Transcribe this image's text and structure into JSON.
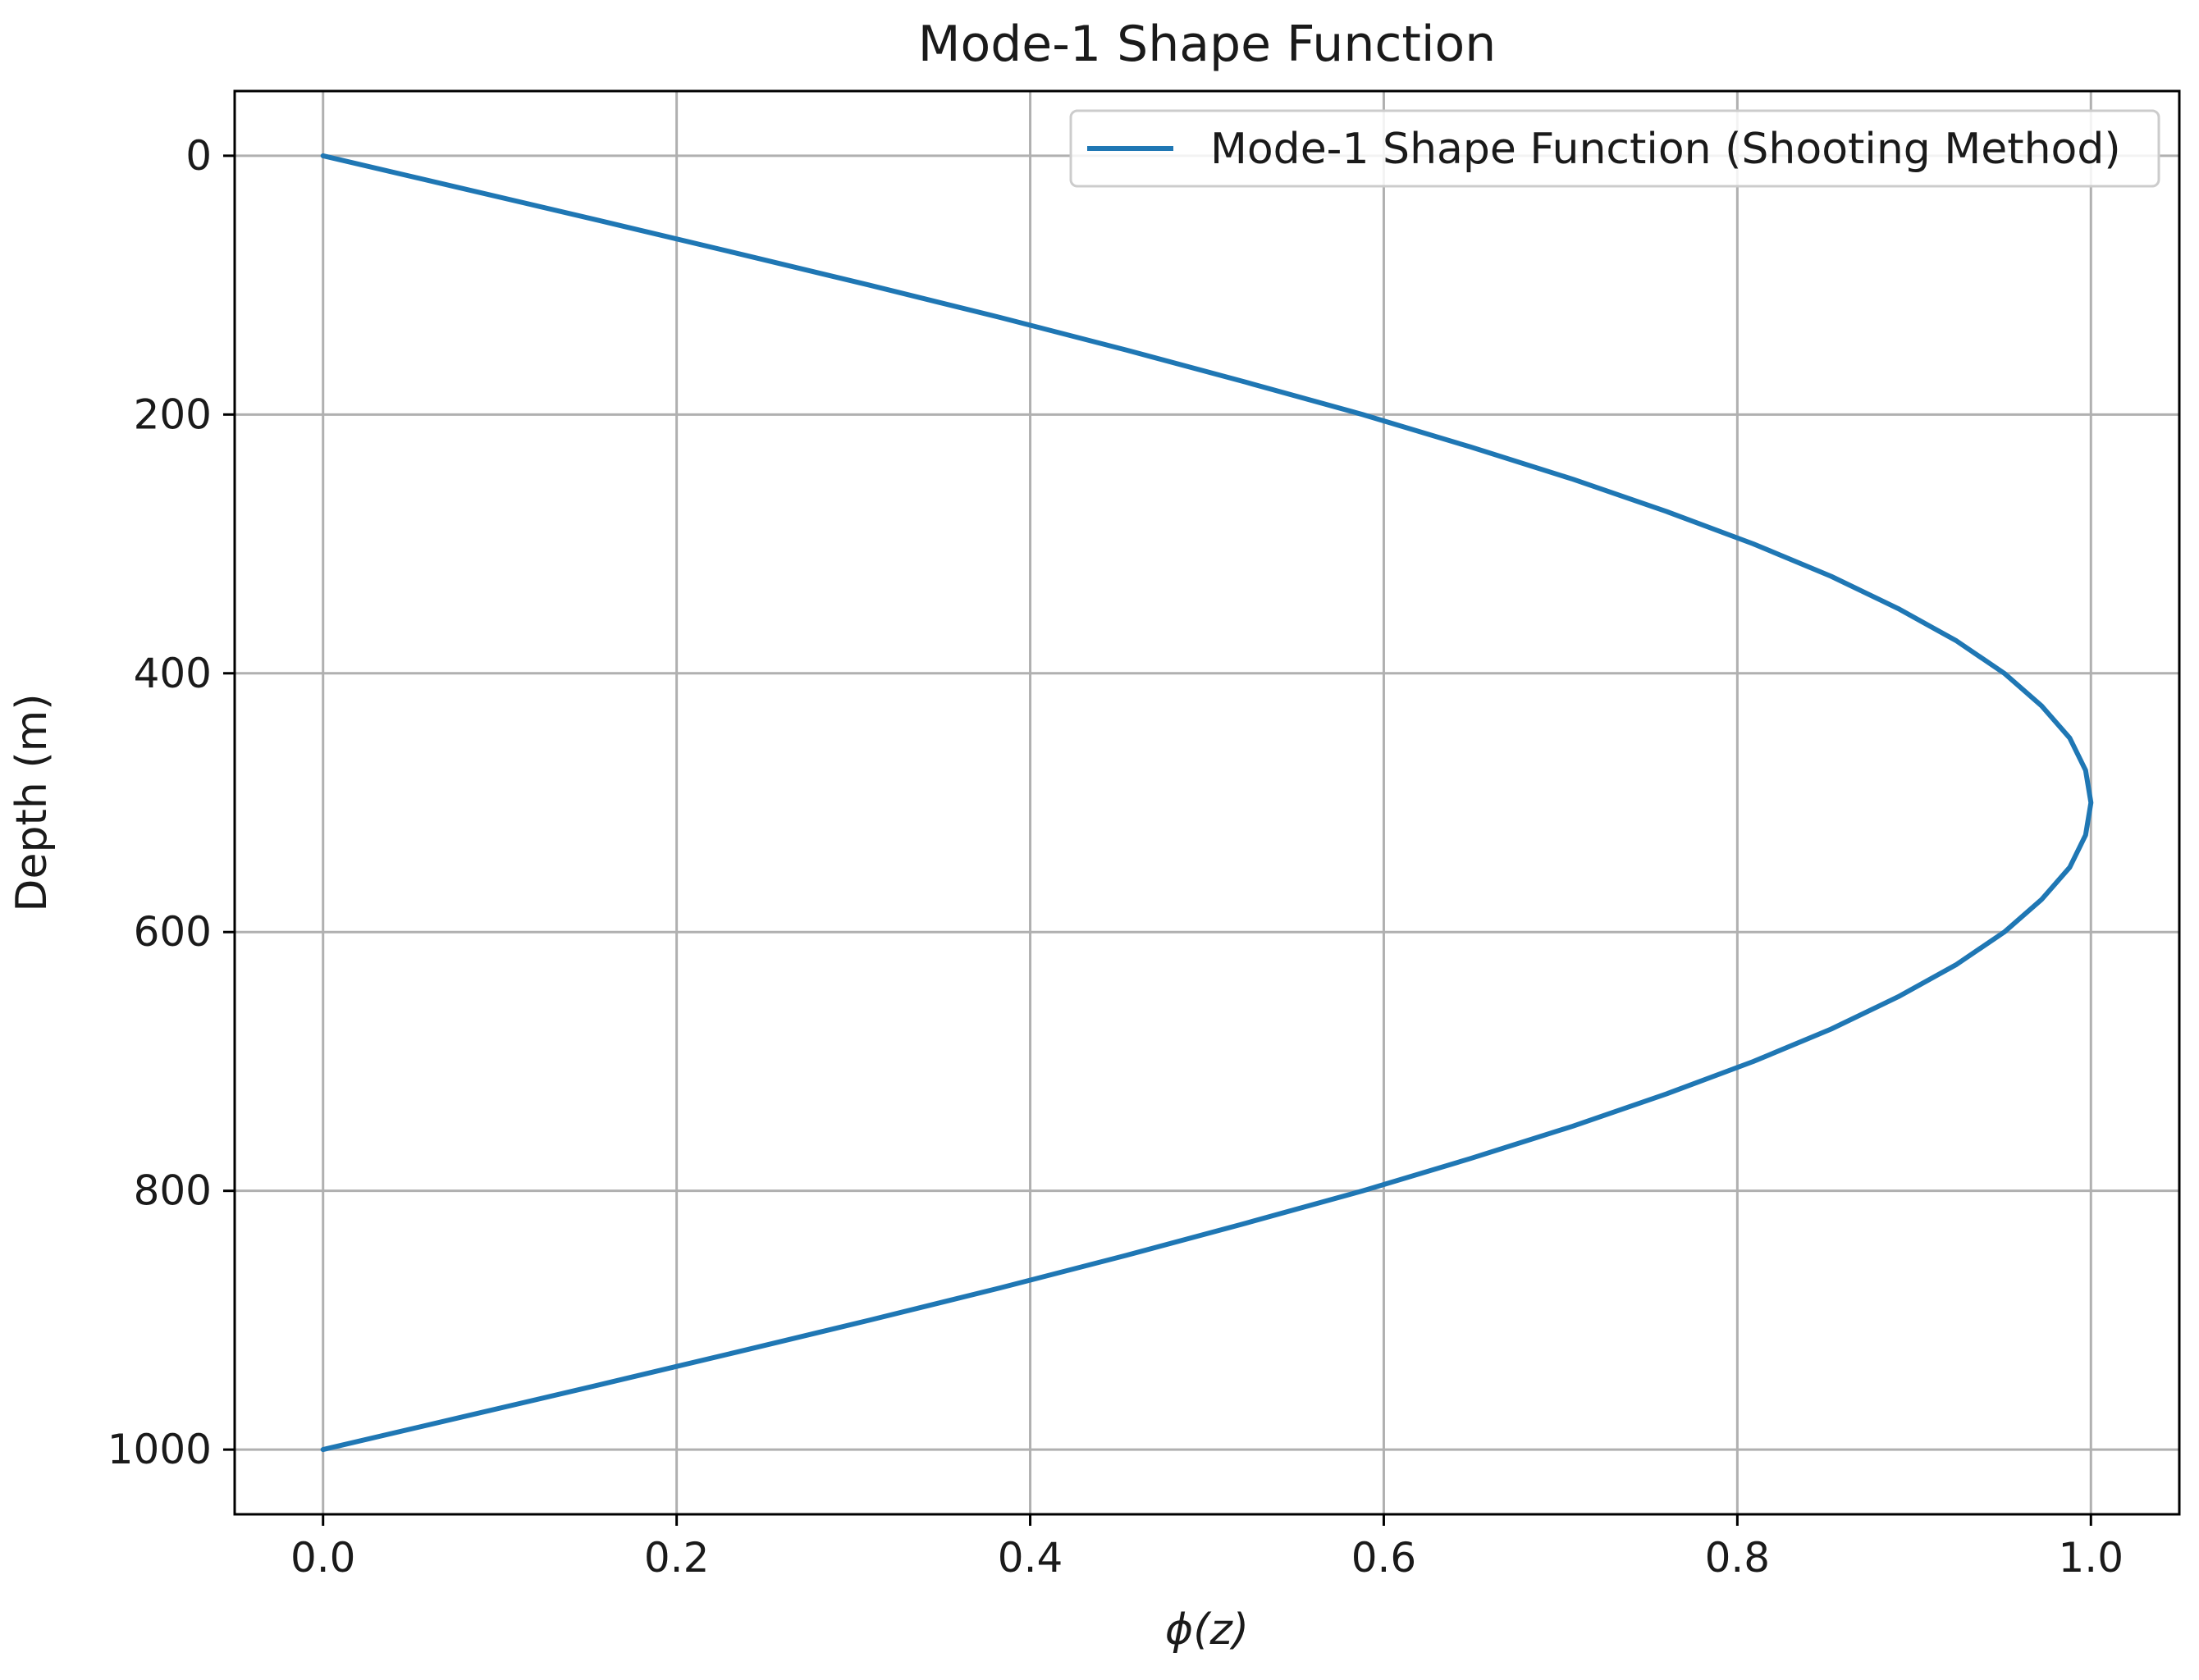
{
  "chart_data": {
    "type": "line",
    "title": "Mode-1 Shape Function",
    "xlabel": "ϕ(z)",
    "ylabel": "Depth (m)",
    "xlim": [
      -0.05,
      1.05
    ],
    "ylim": [
      1050,
      -50
    ],
    "y_inverted": true,
    "grid": true,
    "legend_position": "top-right",
    "x_ticks": [
      0.0,
      0.2,
      0.4,
      0.6,
      0.8,
      1.0
    ],
    "x_tick_labels": [
      "0.0",
      "0.2",
      "0.4",
      "0.6",
      "0.8",
      "1.0"
    ],
    "y_ticks": [
      0,
      200,
      400,
      600,
      800,
      1000
    ],
    "y_tick_labels": [
      "0",
      "200",
      "400",
      "600",
      "800",
      "1000"
    ],
    "series": [
      {
        "name": "Mode-1 Shape Function (Shooting Method)",
        "color": "#1f77b4",
        "x": [
          0.0,
          0.078,
          0.156,
          0.233,
          0.309,
          0.383,
          0.454,
          0.522,
          0.588,
          0.649,
          0.707,
          0.76,
          0.809,
          0.853,
          0.891,
          0.924,
          0.951,
          0.972,
          0.988,
          0.997,
          1.0,
          0.997,
          0.988,
          0.972,
          0.951,
          0.924,
          0.891,
          0.853,
          0.809,
          0.76,
          0.707,
          0.649,
          0.588,
          0.522,
          0.454,
          0.383,
          0.309,
          0.233,
          0.156,
          0.078,
          0.0
        ],
        "y": [
          0,
          25,
          50,
          75,
          100,
          125,
          150,
          175,
          200,
          225,
          250,
          275,
          300,
          325,
          350,
          375,
          400,
          425,
          450,
          475,
          500,
          525,
          550,
          575,
          600,
          625,
          650,
          675,
          700,
          725,
          750,
          775,
          800,
          825,
          850,
          875,
          900,
          925,
          950,
          975,
          1000
        ]
      }
    ]
  }
}
